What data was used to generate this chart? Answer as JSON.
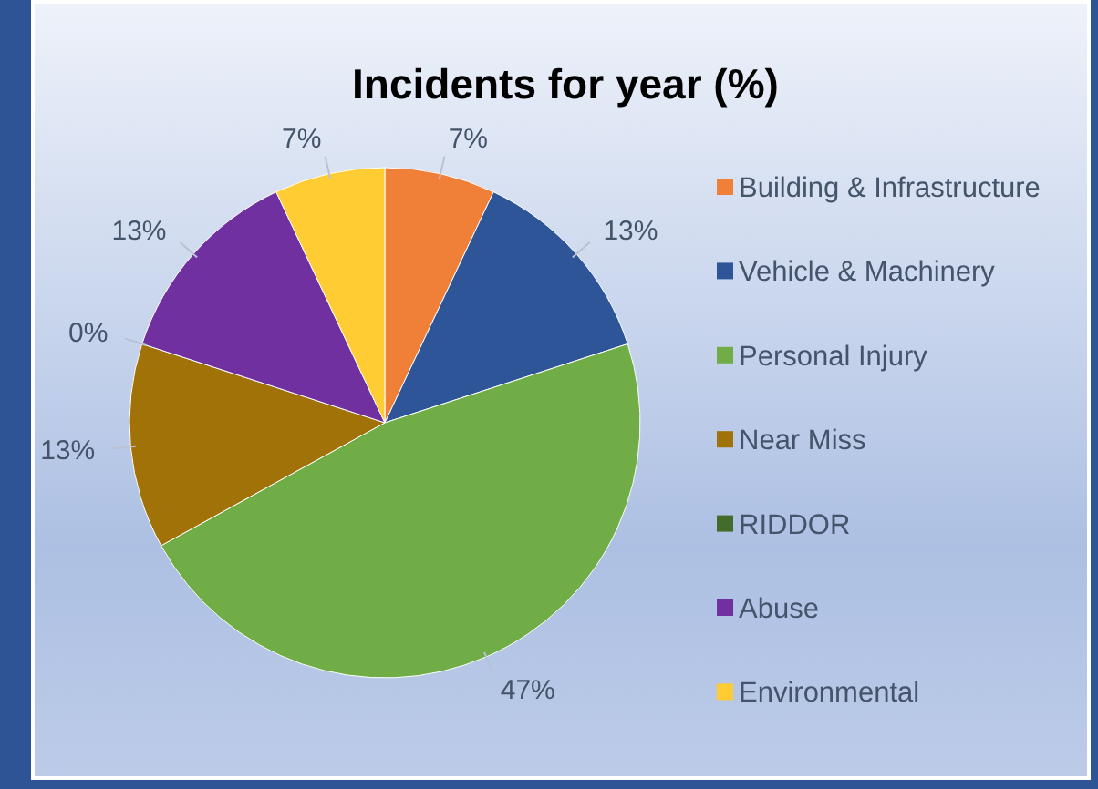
{
  "chart_data": {
    "type": "pie",
    "title": "Incidents for year (%)",
    "categories": [
      "Building & Infrastructure",
      "Vehicle & Machinery",
      "Personal Injury",
      "Near Miss",
      "RIDDOR",
      "Abuse",
      "Environmental"
    ],
    "values": [
      7,
      13,
      47,
      13,
      0,
      13,
      7
    ],
    "colors": [
      "#f07f38",
      "#2e5597",
      "#70ad47",
      "#a07208",
      "#436b29",
      "#7030a0",
      "#ffcc33"
    ],
    "value_labels": [
      "7%",
      "13%",
      "47%",
      "13%",
      "0%",
      "13%",
      "7%"
    ],
    "legend": "right"
  }
}
